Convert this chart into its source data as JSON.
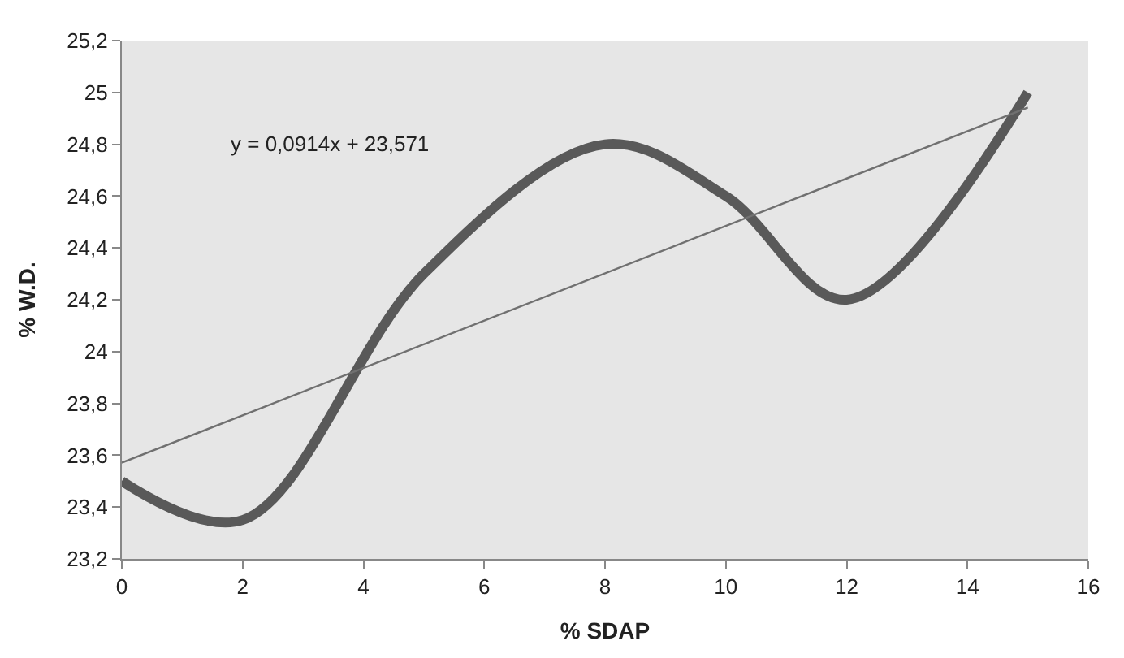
{
  "chart_data": {
    "type": "line",
    "xlabel": "% SDAP",
    "ylabel": "% W.D.",
    "series": [
      {
        "color": "#595959",
        "x": [
          0,
          2,
          5,
          8,
          10,
          12,
          15
        ],
        "values": [
          23.5,
          23.35,
          24.3,
          24.8,
          24.6,
          24.2,
          25
        ]
      },
      {
        "color": "#707070",
        "x": [
          0,
          15
        ],
        "values": [
          23.571,
          24.942
        ]
      }
    ],
    "annotations": [
      "y = 0,0914x + 23,571"
    ],
    "xlim": [
      0,
      16
    ],
    "xticks": [
      0,
      2,
      4,
      6,
      8,
      10,
      12,
      14,
      16
    ],
    "ylim": [
      23.2,
      25.2
    ],
    "yticks": [
      {
        "value": 23.2,
        "label": "23,2"
      },
      {
        "value": 23.4,
        "label": "23,4"
      },
      {
        "value": 23.6,
        "label": "23,6"
      },
      {
        "value": 23.8,
        "label": "23,8"
      },
      24,
      {
        "value": 24.2,
        "label": "24,2"
      },
      {
        "value": 24.4,
        "label": "24,4"
      },
      {
        "value": 24.6,
        "label": "24,6"
      },
      {
        "value": 24.8,
        "label": "24,8"
      },
      25,
      {
        "value": 25.2,
        "label": "25,2"
      }
    ],
    "grid": false,
    "marker": "none"
  }
}
